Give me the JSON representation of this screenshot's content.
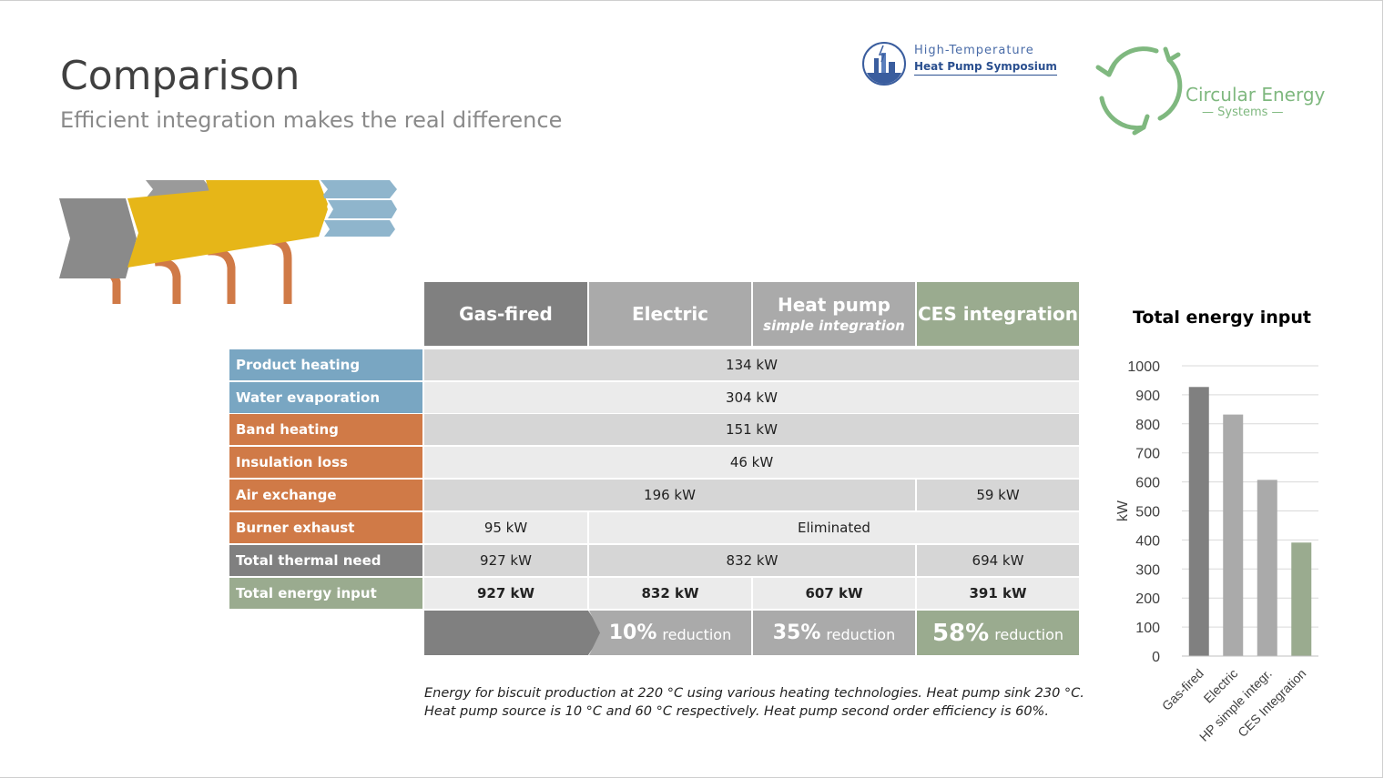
{
  "header": {
    "title": "Comparison",
    "subtitle": "Efficient integration makes the real difference"
  },
  "logos": {
    "ht_line1": "High-Temperature",
    "ht_line2": "Heat Pump Symposium",
    "ces_line1": "Circular Energy",
    "ces_line2": "Systems"
  },
  "colors": {
    "gas": "#808080",
    "electric": "#aaaaaa",
    "heatpump": "#aaaaaa",
    "ces": "#9aab8f",
    "blue": "#79a6c2",
    "orange": "#d07a47",
    "yellow": "#e6b618",
    "cell_dark": "#d6d6d6",
    "cell_light": "#ebebeb"
  },
  "table": {
    "columns": [
      {
        "main": "Gas-fired",
        "sub": ""
      },
      {
        "main": "Electric",
        "sub": ""
      },
      {
        "main": "Heat pump",
        "sub": "simple integration"
      },
      {
        "main": "CES integration",
        "sub": ""
      }
    ],
    "rows": [
      {
        "label": "Product heating",
        "cells": [
          "134 kW"
        ]
      },
      {
        "label": "Water evaporation",
        "cells": [
          "304 kW"
        ]
      },
      {
        "label": "Band heating",
        "cells": [
          "151 kW"
        ]
      },
      {
        "label": "Insulation loss",
        "cells": [
          "46 kW"
        ]
      },
      {
        "label": "Air exchange",
        "cells": [
          "196 kW",
          "59 kW"
        ]
      },
      {
        "label": "Burner exhaust",
        "cells": [
          "95 kW",
          "Eliminated"
        ]
      },
      {
        "label": "Total thermal need",
        "cells": [
          "927 kW",
          "832 kW",
          "694 kW"
        ]
      },
      {
        "label": "Total energy input",
        "cells": [
          "927 kW",
          "832 kW",
          "607 kW",
          "391 kW"
        ]
      }
    ],
    "reductions": [
      {
        "pct": "10%",
        "word": "reduction"
      },
      {
        "pct": "35%",
        "word": "reduction"
      },
      {
        "pct": "58%",
        "word": "reduction"
      }
    ]
  },
  "footnote": {
    "line1": "Energy for biscuit production at 220 °C using various heating technologies. Heat pump sink 230 °C.",
    "line2": "Heat pump source is 10 °C and 60 °C respectively. Heat pump second order efficiency is 60%."
  },
  "chart_data": {
    "type": "bar",
    "title": "Total energy input",
    "categories": [
      "Gas-fired",
      "Electric",
      "HP simple integr.",
      "CES Integration"
    ],
    "values": [
      927,
      832,
      607,
      391
    ],
    "colors": [
      "#808080",
      "#aaaaaa",
      "#aaaaaa",
      "#9aab8f"
    ],
    "ylabel": "kW",
    "xlabel": "",
    "ylim": [
      0,
      1000
    ],
    "yticks": [
      0,
      100,
      200,
      300,
      400,
      500,
      600,
      700,
      800,
      900,
      1000
    ],
    "grid": true
  }
}
